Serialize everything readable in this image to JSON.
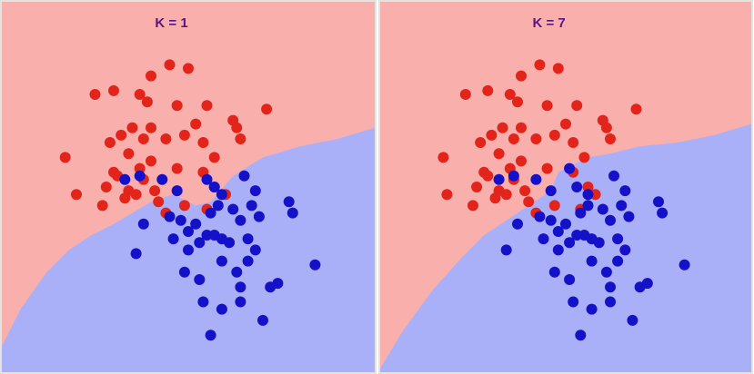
{
  "colors": {
    "class_red_region": "#f9b0ac",
    "class_blue_region": "#aab0f7",
    "class_red_point": "#e3241b",
    "class_blue_point": "#1511c9",
    "title": "#5b1581",
    "panel_border": "#e3e3e3"
  },
  "chart_data": [
    {
      "type": "scatter",
      "title": "K = 1",
      "xlabel": "",
      "ylabel": "",
      "grid": false,
      "xlim": [
        0,
        100
      ],
      "ylim": [
        0,
        100
      ],
      "region_boundary": [
        [
          0,
          7
        ],
        [
          5,
          17
        ],
        [
          12,
          27
        ],
        [
          18,
          33
        ],
        [
          24,
          37
        ],
        [
          30,
          40
        ],
        [
          35,
          43
        ],
        [
          40,
          46
        ],
        [
          46,
          48
        ],
        [
          48,
          47
        ],
        [
          52,
          45
        ],
        [
          56,
          46
        ],
        [
          62,
          53
        ],
        [
          70,
          58
        ],
        [
          80,
          61
        ],
        [
          90,
          63
        ],
        [
          100,
          66
        ]
      ],
      "series": [
        {
          "class": "red",
          "points": [
            [
              17,
              58
            ],
            [
              25,
              75
            ],
            [
              30,
              76
            ],
            [
              37,
              75
            ],
            [
              39,
              73
            ],
            [
              40,
              80
            ],
            [
              45,
              83
            ],
            [
              50,
              82
            ],
            [
              47,
              72
            ],
            [
              52,
              67
            ],
            [
              55,
              72
            ],
            [
              63,
              66
            ],
            [
              64,
              63
            ],
            [
              62,
              68
            ],
            [
              71,
              71
            ],
            [
              29,
              62
            ],
            [
              32,
              64
            ],
            [
              34,
              59
            ],
            [
              35,
              66
            ],
            [
              38,
              63
            ],
            [
              40,
              66
            ],
            [
              44,
              63
            ],
            [
              49,
              64
            ],
            [
              54,
              62
            ],
            [
              57,
              58
            ],
            [
              31,
              53
            ],
            [
              36,
              48
            ],
            [
              42,
              46
            ],
            [
              60,
              48
            ],
            [
              28,
              50
            ],
            [
              30,
              54
            ],
            [
              33,
              47
            ],
            [
              38,
              52
            ],
            [
              41,
              49
            ],
            [
              44,
              43
            ],
            [
              49,
              45
            ],
            [
              55,
              44
            ],
            [
              57,
              50
            ],
            [
              20,
              48
            ],
            [
              27,
              45
            ],
            [
              37,
              55
            ],
            [
              40,
              57
            ],
            [
              54,
              54
            ],
            [
              47,
              55
            ],
            [
              34,
              49
            ]
          ]
        },
        {
          "class": "blue",
          "points": [
            [
              33,
              52
            ],
            [
              37,
              53
            ],
            [
              43,
              52
            ],
            [
              47,
              49
            ],
            [
              55,
              52
            ],
            [
              57,
              50
            ],
            [
              59,
              48
            ],
            [
              65,
              53
            ],
            [
              68,
              49
            ],
            [
              38,
              40
            ],
            [
              45,
              42
            ],
            [
              48,
              41
            ],
            [
              50,
              38
            ],
            [
              52,
              40
            ],
            [
              56,
              43
            ],
            [
              58,
              45
            ],
            [
              62,
              44
            ],
            [
              64,
              41
            ],
            [
              67,
              45
            ],
            [
              69,
              42
            ],
            [
              53,
              35
            ],
            [
              55,
              37
            ],
            [
              57,
              37
            ],
            [
              59,
              36
            ],
            [
              61,
              35
            ],
            [
              46,
              36
            ],
            [
              50,
              33
            ],
            [
              66,
              36
            ],
            [
              68,
              33
            ],
            [
              77,
              46
            ],
            [
              78,
              43
            ],
            [
              36,
              32
            ],
            [
              49,
              27
            ],
            [
              53,
              25
            ],
            [
              59,
              30
            ],
            [
              63,
              27
            ],
            [
              64,
              23
            ],
            [
              66,
              30
            ],
            [
              72,
              23
            ],
            [
              74,
              24
            ],
            [
              84,
              29
            ],
            [
              54,
              19
            ],
            [
              59,
              17
            ],
            [
              64,
              19
            ],
            [
              70,
              14
            ],
            [
              56,
              10
            ]
          ]
        }
      ]
    },
    {
      "type": "scatter",
      "title": "K = 7",
      "xlabel": "",
      "ylabel": "",
      "grid": false,
      "xlim": [
        0,
        100
      ],
      "ylim": [
        0,
        100
      ],
      "region_boundary": [
        [
          0,
          1
        ],
        [
          6,
          11
        ],
        [
          14,
          22
        ],
        [
          22,
          31
        ],
        [
          28,
          37
        ],
        [
          34,
          41
        ],
        [
          40,
          45
        ],
        [
          46,
          49
        ],
        [
          48,
          54
        ],
        [
          52,
          56
        ],
        [
          56,
          58
        ],
        [
          62,
          59
        ],
        [
          70,
          61
        ],
        [
          80,
          62
        ],
        [
          90,
          64
        ],
        [
          100,
          67
        ]
      ],
      "series": [
        {
          "class": "red",
          "points": [
            [
              17,
              58
            ],
            [
              23,
              75
            ],
            [
              29,
              76
            ],
            [
              35,
              75
            ],
            [
              37,
              73
            ],
            [
              38,
              80
            ],
            [
              43,
              83
            ],
            [
              48,
              82
            ],
            [
              45,
              72
            ],
            [
              50,
              67
            ],
            [
              53,
              72
            ],
            [
              61,
              66
            ],
            [
              62,
              63
            ],
            [
              60,
              68
            ],
            [
              69,
              71
            ],
            [
              27,
              62
            ],
            [
              30,
              64
            ],
            [
              32,
              59
            ],
            [
              33,
              66
            ],
            [
              36,
              63
            ],
            [
              38,
              66
            ],
            [
              42,
              63
            ],
            [
              47,
              64
            ],
            [
              52,
              62
            ],
            [
              55,
              58
            ],
            [
              29,
              53
            ],
            [
              34,
              48
            ],
            [
              40,
              46
            ],
            [
              58,
              48
            ],
            [
              26,
              50
            ],
            [
              28,
              54
            ],
            [
              31,
              47
            ],
            [
              36,
              52
            ],
            [
              39,
              49
            ],
            [
              42,
              43
            ],
            [
              47,
              45
            ],
            [
              54,
              44
            ],
            [
              56,
              50
            ],
            [
              18,
              48
            ],
            [
              25,
              45
            ],
            [
              35,
              55
            ],
            [
              38,
              57
            ],
            [
              52,
              54
            ],
            [
              45,
              55
            ],
            [
              32,
              49
            ]
          ]
        },
        {
          "class": "blue",
          "points": [
            [
              32,
              52
            ],
            [
              36,
              53
            ],
            [
              42,
              52
            ],
            [
              46,
              49
            ],
            [
              51,
              55
            ],
            [
              53,
              50
            ],
            [
              56,
              48
            ],
            [
              63,
              53
            ],
            [
              66,
              49
            ],
            [
              37,
              40
            ],
            [
              43,
              42
            ],
            [
              46,
              41
            ],
            [
              48,
              38
            ],
            [
              50,
              40
            ],
            [
              54,
              43
            ],
            [
              56,
              45
            ],
            [
              60,
              44
            ],
            [
              62,
              41
            ],
            [
              65,
              45
            ],
            [
              67,
              42
            ],
            [
              51,
              35
            ],
            [
              53,
              37
            ],
            [
              55,
              37
            ],
            [
              57,
              36
            ],
            [
              59,
              35
            ],
            [
              44,
              36
            ],
            [
              48,
              33
            ],
            [
              64,
              36
            ],
            [
              66,
              33
            ],
            [
              75,
              46
            ],
            [
              76,
              43
            ],
            [
              34,
              33
            ],
            [
              47,
              27
            ],
            [
              51,
              25
            ],
            [
              57,
              30
            ],
            [
              61,
              27
            ],
            [
              62,
              23
            ],
            [
              64,
              30
            ],
            [
              70,
              23
            ],
            [
              72,
              24
            ],
            [
              82,
              29
            ],
            [
              52,
              19
            ],
            [
              57,
              17
            ],
            [
              62,
              19
            ],
            [
              68,
              14
            ],
            [
              54,
              10
            ]
          ]
        }
      ]
    }
  ]
}
